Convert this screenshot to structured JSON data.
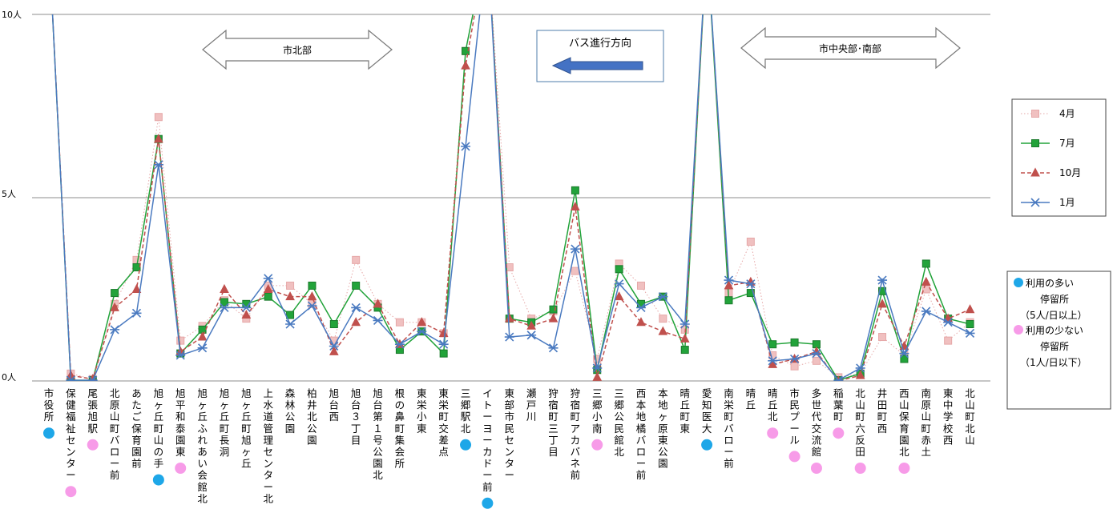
{
  "chart_data": {
    "type": "line",
    "ylim": [
      0,
      10
    ],
    "yticks": [
      {
        "value": 0,
        "label": "0人"
      },
      {
        "value": 5,
        "label": "5人"
      },
      {
        "value": 10,
        "label": "10人"
      }
    ],
    "grid": true,
    "categories": [
      "市役所",
      "保健福祉センター",
      "尾張旭駅",
      "北原山町バロー前",
      "あたご保育園前",
      "旭ヶ丘町山の手",
      "旭平和泰園東",
      "旭ヶ丘ふれあい会館北",
      "旭ヶ丘町長洞",
      "旭ヶ丘町旭ヶ丘",
      "上水道管理センター北",
      "森林公園",
      "柏井北公園",
      "旭台西",
      "旭台３丁目",
      "旭台第１号公園北",
      "根の鼻町集会所",
      "東栄小東",
      "東栄町交差点",
      "三郷駅北",
      "イトーヨーカドー前",
      "東部市民センター",
      "瀬戸川",
      "狩宿町三丁目",
      "狩宿町アカバネ前",
      "三郷小南",
      "三郷公民館北",
      "西本地橘バロー前",
      "本地ヶ原東公園",
      "晴丘町東",
      "愛知医大",
      "南栄町バロー前",
      "晴丘",
      "晴丘北",
      "市民プール",
      "多世代交流館",
      "稲葉町",
      "北山町六反田",
      "井田町西",
      "西山保育園北",
      "南原山町赤土",
      "東中学校西",
      "北山町北山"
    ],
    "category_marks": [
      "blue",
      "pink",
      "pink",
      "",
      "",
      "blue",
      "pink",
      "",
      "",
      "",
      "",
      "",
      "",
      "",
      "",
      "",
      "",
      "",
      "",
      "blue",
      "blue",
      "",
      "",
      "",
      "",
      "pink",
      "",
      "",
      "",
      "",
      "blue",
      "",
      "",
      "pink",
      "pink",
      "pink",
      "pink",
      "pink",
      "",
      "pink",
      "",
      "",
      ""
    ],
    "series": [
      {
        "name": "4月",
        "color": "#e6a8a8",
        "style": "dotted",
        "marker": "square-hollow",
        "values": [
          12,
          0.2,
          0.05,
          2.1,
          3.3,
          7.2,
          1.1,
          1.5,
          2.2,
          1.7,
          2.6,
          2.6,
          2.1,
          1.1,
          3.3,
          2.1,
          1.6,
          1.6,
          1.3,
          9,
          12,
          3.1,
          1.7,
          1.9,
          3.0,
          0.6,
          3.2,
          2.6,
          1.7,
          1.4,
          12,
          2.4,
          3.8,
          0.7,
          0.4,
          0.55,
          0.1,
          0.2,
          1.2,
          0.7,
          2.5,
          1.1,
          1.6
        ]
      },
      {
        "name": "7月",
        "color": "#22a33a",
        "style": "solid",
        "marker": "square",
        "values": [
          12,
          0.02,
          0.02,
          2.4,
          3.1,
          6.6,
          0.75,
          1.4,
          2.15,
          2.1,
          2.3,
          1.8,
          2.6,
          1.55,
          2.6,
          2.0,
          0.85,
          1.35,
          0.75,
          9,
          12,
          1.7,
          1.6,
          1.95,
          5.2,
          0.3,
          3.05,
          2.1,
          2.3,
          0.85,
          12,
          2.2,
          2.4,
          1.0,
          1.05,
          1.0,
          0.02,
          0.2,
          2.45,
          0.6,
          3.2,
          1.7,
          1.55
        ]
      },
      {
        "name": "10月",
        "color": "#c0504d",
        "style": "dashed",
        "marker": "triangle",
        "values": [
          12,
          0.15,
          0.05,
          2.0,
          2.5,
          6.6,
          0.8,
          1.2,
          2.5,
          1.8,
          2.5,
          2.3,
          2.3,
          0.8,
          1.6,
          2.1,
          1.0,
          1.6,
          1.3,
          8.6,
          12,
          1.7,
          1.5,
          1.7,
          4.75,
          0.1,
          2.3,
          1.6,
          1.35,
          1.15,
          12,
          2.6,
          2.7,
          0.45,
          0.6,
          0.8,
          0.0,
          0.15,
          2.1,
          0.95,
          2.7,
          1.7,
          1.95
        ]
      },
      {
        "name": "1月",
        "color": "#4a7ac0",
        "style": "solid",
        "marker": "star",
        "values": [
          12,
          0.02,
          0.02,
          1.4,
          1.85,
          5.9,
          0.7,
          0.9,
          2.0,
          2.0,
          2.8,
          1.55,
          2.05,
          0.95,
          2.0,
          1.65,
          1.0,
          1.35,
          1.0,
          6.4,
          12,
          1.2,
          1.25,
          0.9,
          3.6,
          0.35,
          2.65,
          2.0,
          2.3,
          1.55,
          12,
          2.75,
          2.65,
          0.55,
          0.6,
          0.75,
          0.02,
          0.35,
          2.75,
          0.75,
          1.9,
          1.6,
          1.3
        ]
      }
    ]
  },
  "annotations": {
    "north_label": "市北部",
    "bus_direction": "バス進行方向",
    "south_label": "市中央部･南部"
  },
  "legend": {
    "items": [
      {
        "label": "4月"
      },
      {
        "label": "7月"
      },
      {
        "label": "10月"
      },
      {
        "label": "1月"
      }
    ]
  },
  "stop_legend": {
    "blue_color": "#1ea7e8",
    "pink_color": "#f79be8",
    "blue_line1": "利用の多い",
    "blue_line2": "停留所",
    "blue_line3": "（5人/日以上）",
    "pink_line1": "利用の少ない",
    "pink_line2": "停留所",
    "pink_line3": "（1人/日以下）"
  }
}
